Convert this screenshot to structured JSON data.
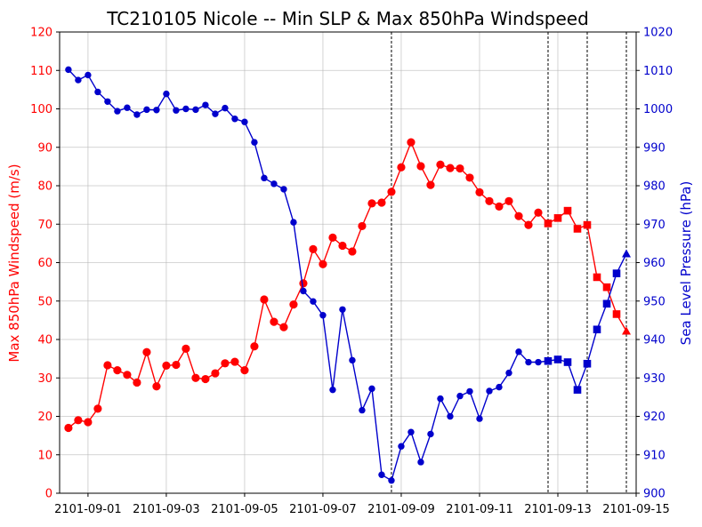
{
  "chart_data": {
    "type": "line",
    "title": "TC210105 Nicole -- Min SLP & Max 850hPa Windspeed",
    "xlabel": "",
    "ylabel_left": "Max 850hPa Windspeed (m/s)",
    "ylabel_right": "Sea Level Pressure (hPa)",
    "ylim_left": [
      0,
      120
    ],
    "ylim_right": [
      900,
      1020
    ],
    "yticks_left": [
      0,
      10,
      20,
      30,
      40,
      50,
      60,
      70,
      80,
      90,
      100,
      110,
      120
    ],
    "yticks_right": [
      900,
      910,
      920,
      930,
      940,
      950,
      960,
      970,
      980,
      990,
      1000,
      1010,
      1020
    ],
    "xlim_days": [
      -0.725,
      14.0
    ],
    "x_ticks": [
      {
        "label": "2101-09-01",
        "day": 0
      },
      {
        "label": "2101-09-03",
        "day": 2
      },
      {
        "label": "2101-09-05",
        "day": 4
      },
      {
        "label": "2101-09-07",
        "day": 6
      },
      {
        "label": "2101-09-09",
        "day": 8
      },
      {
        "label": "2101-09-11",
        "day": 10
      },
      {
        "label": "2101-09-13",
        "day": 12
      },
      {
        "label": "2101-09-15",
        "day": 14
      }
    ],
    "x_start": "2101-08-31 12:00",
    "x_step_hours": 6,
    "vlines_day": [
      7.75,
      11.75,
      12.75,
      13.75
    ],
    "grid": true,
    "legend": "none",
    "colors": {
      "wind": "#ff0000",
      "pressure": "#0000cc",
      "vline": "#000000"
    },
    "series": [
      {
        "axis": "left",
        "color": "#ff0000",
        "values": [
          17,
          19,
          18.5,
          22,
          33.3,
          32,
          30.8,
          28.8,
          36.7,
          27.8,
          33.2,
          33.4,
          37.6,
          30,
          29.7,
          31.2,
          33.8,
          34.2,
          32,
          38.2,
          50.4,
          44.6,
          43.2,
          49.1,
          54.6,
          63.5,
          59.6,
          66.5,
          64.4,
          62.9,
          69.5,
          75.4,
          75.6,
          78.4,
          84.8,
          91.3,
          85.1,
          80.2,
          85.5,
          84.6,
          84.5,
          82.1,
          78.3,
          76,
          74.6,
          76,
          72.1,
          69.8,
          73,
          70.2,
          71.6,
          73.5,
          68.8,
          69.8,
          56.2,
          53.6,
          46.6,
          42.2
        ],
        "markers": [
          "circle:0-49",
          "square:49-57",
          "triangle:57-58"
        ]
      },
      {
        "axis": "right",
        "color": "#0000cc",
        "values": [
          1010.2,
          1007.5,
          1008.8,
          1004.4,
          1001.9,
          999.4,
          1000.3,
          998.5,
          999.8,
          999.7,
          1003.9,
          999.6,
          1000,
          999.8,
          1001,
          998.7,
          1000.2,
          997.4,
          996.6,
          991.3,
          982,
          980.5,
          979.1,
          970.5,
          952.6,
          949.9,
          946.3,
          926.9,
          947.8,
          934.6,
          921.6,
          927.2,
          904.8,
          903.3,
          912.2,
          915.9,
          908.1,
          915.4,
          924.6,
          920,
          925.3,
          926.5,
          919.4,
          926.6,
          927.6,
          931.3,
          936.8,
          934.1,
          934.1,
          934.4,
          934.8,
          934.1,
          926.9,
          933.7,
          942.6,
          949.3,
          957.2,
          962.3
        ],
        "markers": [
          "circle:0-49",
          "square:49-57",
          "triangle:57-58"
        ]
      }
    ]
  }
}
